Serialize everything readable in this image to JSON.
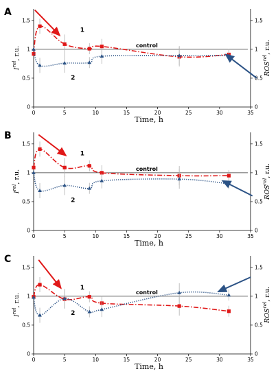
{
  "chart_data": [
    {
      "type": "line",
      "panel": "A",
      "xlabel": "Time, h",
      "ylabel_left": "I^rel, r.u.",
      "ylabel_right": "ROS^rel, r.u.",
      "xlim": [
        0,
        35
      ],
      "ylim": [
        0,
        1.7
      ],
      "xticks": [
        0,
        5,
        10,
        15,
        20,
        25,
        30,
        35
      ],
      "yticks_left": [
        "0",
        "0.5",
        "1",
        "1.5"
      ],
      "yticks_right": [
        "0",
        "0.5",
        "1",
        "1.5"
      ],
      "control_level": 1.0,
      "control_label": "control",
      "series": [
        {
          "label": "1",
          "style": "red-dashdot-square",
          "x": [
            0,
            1,
            5,
            9,
            11,
            23.5,
            31.5
          ],
          "y": [
            0.92,
            1.4,
            1.09,
            1.01,
            1.05,
            0.87,
            0.91
          ]
        },
        {
          "label": "2",
          "style": "blue-dotted-triangle",
          "x": [
            0,
            1,
            5,
            9,
            11,
            23.5,
            31.5
          ],
          "y": [
            1.0,
            0.72,
            0.76,
            0.77,
            0.88,
            0.89,
            0.89
          ]
        }
      ],
      "arrows": [
        {
          "color": "#e01818",
          "from": [
            0.2,
            1.68
          ],
          "to": [
            4.2,
            1.24
          ]
        },
        {
          "color": "#2b5285",
          "from": [
            36,
            0.5
          ],
          "to": [
            31,
            0.91
          ]
        }
      ]
    },
    {
      "type": "line",
      "panel": "B",
      "xlabel": "Time, h",
      "ylabel_left": "I^rel, r.u.",
      "ylabel_right": "ROS^rel, r.u.",
      "xlim": [
        0,
        35
      ],
      "ylim": [
        0,
        1.7
      ],
      "xticks": [
        0,
        5,
        10,
        15,
        20,
        25,
        30,
        35
      ],
      "yticks_left": [
        "0",
        "0.5",
        "1",
        "1.5"
      ],
      "yticks_right": [
        "0",
        "0.5",
        "1",
        "1.5"
      ],
      "control_level": 1.0,
      "control_label": "control",
      "series": [
        {
          "label": "1",
          "style": "red-dashdot-square",
          "x": [
            0,
            1,
            5,
            9,
            11,
            23.5,
            31.5
          ],
          "y": [
            1.09,
            1.41,
            1.09,
            1.12,
            1.0,
            0.95,
            0.95
          ]
        },
        {
          "label": "2",
          "style": "blue-dotted-triangle",
          "x": [
            0,
            1,
            5,
            9,
            11,
            23.5,
            31.5
          ],
          "y": [
            1.0,
            0.69,
            0.78,
            0.73,
            0.86,
            0.89,
            0.81
          ]
        }
      ],
      "arrows": [
        {
          "color": "#e01818",
          "from": [
            0.8,
            1.66
          ],
          "to": [
            5.2,
            1.3
          ]
        },
        {
          "color": "#2b5285",
          "from": [
            35.3,
            0.6
          ],
          "to": [
            30.5,
            0.86
          ]
        }
      ]
    },
    {
      "type": "line",
      "panel": "C",
      "xlabel": "Time, h",
      "ylabel_left": "I^rel, r.u.",
      "ylabel_right": "ROS^rel, r.u.",
      "xlim": [
        0,
        35
      ],
      "ylim": [
        0,
        1.7
      ],
      "xticks": [
        0,
        5,
        10,
        15,
        20,
        25,
        30,
        35
      ],
      "yticks_left": [
        "0",
        "0.5",
        "1",
        "1.5"
      ],
      "yticks_right": [
        "0",
        "0.5",
        "1",
        "1.5"
      ],
      "control_level": 1.0,
      "control_label": "control",
      "series": [
        {
          "label": "1",
          "style": "red-dashdot-square",
          "x": [
            0,
            1,
            5,
            9,
            11,
            23.5,
            31.5
          ],
          "y": [
            0.99,
            1.2,
            0.95,
            0.99,
            0.88,
            0.83,
            0.74
          ]
        },
        {
          "label": "2",
          "style": "blue-dotted-triangle",
          "x": [
            0,
            1,
            5,
            9,
            11,
            23.5,
            31.5
          ],
          "y": [
            0.98,
            0.67,
            0.96,
            0.73,
            0.77,
            1.06,
            1.02
          ]
        }
      ],
      "arrows": [
        {
          "color": "#e01818",
          "from": [
            0.8,
            1.63
          ],
          "to": [
            4.4,
            1.14
          ]
        },
        {
          "color": "#2b5285",
          "from": [
            35,
            1.33
          ],
          "to": [
            29.8,
            1.08
          ]
        }
      ]
    }
  ]
}
